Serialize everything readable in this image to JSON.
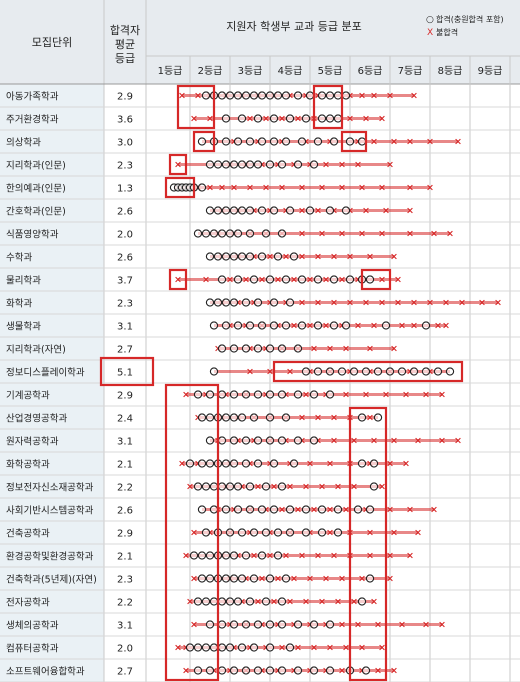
{
  "headers": {
    "unit": "모집단위",
    "avg": "합격자 평균 등급",
    "dist": "지원자 학생부 교과 등급 분포"
  },
  "legend": {
    "pass_symbol": "○",
    "pass_text": "합격(충원합격 포함)",
    "fail_symbol": "X",
    "fail_text": "불합격"
  },
  "colors": {
    "accent": "#d62828",
    "header_bg": "#e7ebef",
    "name_bg": "#eaf1f5",
    "grid": "#c9c9c9"
  },
  "chart_data": {
    "type": "scatter",
    "title": "지원자 학생부 교과 등급 분포",
    "xlim": [
      0.5,
      9.5
    ],
    "grades": [
      "1등급",
      "2등급",
      "3등급",
      "4등급",
      "5등급",
      "6등급",
      "7등급",
      "8등급",
      "9등급"
    ],
    "series": [
      {
        "name": "합격(충원합격 포함)",
        "marker": "circle"
      },
      {
        "name": "불합격",
        "marker": "x"
      }
    ],
    "rows": [
      {
        "name": "아동가족학과",
        "avg": "2.9",
        "pass": [
          1.9,
          2.1,
          2.3,
          2.5,
          2.7,
          2.9,
          3.1,
          3.3,
          3.5,
          3.7,
          3.9,
          4.2,
          4.5,
          4.8,
          5.0,
          5.2,
          5.4
        ],
        "fail": [
          1.3,
          1.7,
          2.0,
          2.4,
          2.8,
          3.2,
          3.6,
          4.0,
          4.4,
          4.7,
          5.5,
          5.8,
          6.1,
          6.5,
          7.1
        ]
      },
      {
        "name": "주거환경학과",
        "avg": "3.6",
        "pass": [
          2.4,
          2.8,
          3.2,
          3.6,
          4.0,
          4.4,
          4.8,
          5.0,
          5.2
        ],
        "fail": [
          1.6,
          2.0,
          3.0,
          3.4,
          3.8,
          4.2,
          4.6,
          5.5,
          5.9,
          6.3
        ]
      },
      {
        "name": "의상학과",
        "avg": "3.0",
        "pass": [
          1.8,
          2.1,
          2.4,
          2.7,
          3.0,
          3.3,
          3.6,
          3.9,
          4.3,
          4.7,
          5.1,
          5.5,
          5.8
        ],
        "fail": [
          2.6,
          3.2,
          3.8,
          4.4,
          5.0,
          5.7,
          6.1,
          6.6,
          7.0,
          7.5,
          8.2
        ]
      },
      {
        "name": "지리학과(인문)",
        "avg": "2.3",
        "pass": [
          2.0,
          2.2,
          2.4,
          2.6,
          2.8,
          3.0,
          3.2,
          3.5,
          3.8,
          4.2,
          4.6
        ],
        "fail": [
          1.2,
          2.5,
          2.9,
          3.3,
          3.7,
          4.1,
          4.5,
          4.9,
          5.3,
          5.7,
          6.5
        ]
      },
      {
        "name": "한의예과(인문)",
        "avg": "1.3",
        "pass": [
          1.1,
          1.2,
          1.3,
          1.4,
          1.5,
          1.6,
          1.8
        ],
        "fail": [
          1.7,
          2.0,
          2.3,
          2.6,
          3.0,
          3.4,
          3.8,
          4.3,
          4.8,
          5.3,
          5.8,
          6.3,
          7.0,
          7.5
        ]
      },
      {
        "name": "간호학과(인문)",
        "avg": "2.6",
        "pass": [
          2.0,
          2.2,
          2.4,
          2.6,
          2.8,
          3.0,
          3.3,
          3.6,
          4.0,
          4.5,
          5.0,
          5.4
        ],
        "fail": [
          2.3,
          2.7,
          3.1,
          3.5,
          3.9,
          4.3,
          4.7,
          5.1,
          5.5,
          5.9,
          6.4,
          7.0
        ]
      },
      {
        "name": "식품영양학과",
        "avg": "2.0",
        "pass": [
          1.7,
          1.9,
          2.1,
          2.3,
          2.5,
          2.7,
          3.0,
          3.4,
          3.8
        ],
        "fail": [
          2.2,
          2.6,
          3.0,
          3.4,
          3.8,
          4.3,
          4.8,
          5.3,
          5.8,
          6.3,
          7.0,
          7.6,
          8.0
        ]
      },
      {
        "name": "수학과",
        "avg": "2.6",
        "pass": [
          2.0,
          2.2,
          2.4,
          2.6,
          2.8,
          3.0,
          3.3,
          3.7,
          4.1
        ],
        "fail": [
          2.3,
          2.7,
          3.1,
          3.5,
          3.9,
          4.3,
          4.7,
          5.1,
          5.5,
          6.0,
          6.6
        ]
      },
      {
        "name": "물리학과",
        "avg": "3.7",
        "pass": [
          2.3,
          2.7,
          3.1,
          3.5,
          3.9,
          4.3,
          4.7,
          5.1,
          5.5,
          5.8,
          6.0
        ],
        "fail": [
          1.2,
          1.9,
          2.5,
          2.9,
          3.3,
          3.7,
          4.1,
          4.5,
          4.9,
          5.3,
          5.7,
          6.3,
          6.7
        ]
      },
      {
        "name": "화학과",
        "avg": "2.3",
        "pass": [
          2.0,
          2.2,
          2.4,
          2.6,
          2.9,
          3.2,
          3.6,
          4.0
        ],
        "fail": [
          2.3,
          2.7,
          3.1,
          3.5,
          3.9,
          4.3,
          4.7,
          5.1,
          5.5,
          5.9,
          6.3,
          6.7,
          7.1,
          7.5,
          7.9,
          8.3,
          8.8,
          9.2
        ]
      },
      {
        "name": "생물학과",
        "avg": "3.1",
        "pass": [
          2.1,
          2.4,
          2.7,
          3.0,
          3.3,
          3.6,
          3.9,
          4.3,
          4.7,
          5.1,
          5.4,
          6.4,
          7.4
        ],
        "fail": [
          2.5,
          2.9,
          3.3,
          3.7,
          4.1,
          4.5,
          4.9,
          5.3,
          5.7,
          6.1,
          6.8,
          7.1,
          7.7,
          7.9
        ]
      },
      {
        "name": "지리학과(자연)",
        "avg": "2.7",
        "pass": [
          2.3,
          2.6,
          2.9,
          3.2,
          3.5,
          3.8,
          4.2
        ],
        "fail": [
          2.2,
          3.0,
          3.4,
          3.8,
          4.2,
          4.6,
          5.0,
          5.4,
          6.0,
          6.6
        ]
      },
      {
        "name": "정보디스플레이학과",
        "avg": "5.1",
        "pass": [
          2.1,
          4.4,
          4.7,
          5.0,
          5.3,
          5.6,
          5.9,
          6.2,
          6.5,
          6.8,
          7.1,
          7.4,
          7.7,
          8.0
        ],
        "fail": [
          3.0,
          3.5,
          4.0,
          4.5,
          5.0,
          5.5,
          6.0,
          6.5,
          7.0,
          7.5
        ]
      },
      {
        "name": "기계공학과",
        "avg": "2.9",
        "pass": [
          1.7,
          2.0,
          2.3,
          2.6,
          2.9,
          3.2,
          3.5,
          3.8,
          4.2,
          4.6,
          5.0
        ],
        "fail": [
          1.4,
          1.9,
          2.4,
          2.9,
          3.4,
          3.9,
          4.4,
          4.9,
          5.4,
          5.9,
          6.4,
          6.9,
          7.4,
          7.8
        ]
      },
      {
        "name": "산업경영공학과",
        "avg": "2.4",
        "pass": [
          1.8,
          2.0,
          2.2,
          2.4,
          2.6,
          2.8,
          3.1,
          3.5,
          3.9,
          5.8,
          6.2
        ],
        "fail": [
          1.7,
          2.3,
          2.7,
          3.1,
          3.5,
          3.9,
          4.3,
          4.7,
          5.1,
          5.5,
          6.0
        ]
      },
      {
        "name": "원자력공학과",
        "avg": "3.1",
        "pass": [
          2.0,
          2.3,
          2.6,
          2.9,
          3.2,
          3.5,
          3.8,
          4.2,
          4.6
        ],
        "fail": [
          2.2,
          2.7,
          3.1,
          3.5,
          3.9,
          4.3,
          4.7,
          5.1,
          5.6,
          6.1,
          6.6,
          7.2,
          7.8,
          8.2
        ]
      },
      {
        "name": "화학공학과",
        "avg": "2.1",
        "pass": [
          1.5,
          1.8,
          2.0,
          2.2,
          2.4,
          2.6,
          2.9,
          3.2,
          3.6,
          4.1,
          5.8,
          6.1
        ],
        "fail": [
          1.3,
          1.7,
          2.5,
          3.0,
          3.5,
          4.0,
          4.5,
          5.0,
          5.5,
          6.0,
          6.5,
          6.9
        ]
      },
      {
        "name": "정보전자신소재공학과",
        "avg": "2.2",
        "pass": [
          1.7,
          1.9,
          2.1,
          2.3,
          2.5,
          2.7,
          3.0,
          3.4,
          3.8,
          6.1
        ],
        "fail": [
          1.5,
          2.4,
          2.8,
          3.2,
          3.6,
          4.0,
          4.4,
          4.8,
          5.2,
          5.6,
          6.3
        ]
      },
      {
        "name": "사회기반시스템공학과",
        "avg": "2.6",
        "pass": [
          1.8,
          2.1,
          2.4,
          2.7,
          3.0,
          3.3,
          3.6,
          4.0,
          4.4,
          4.8,
          5.2,
          5.7,
          6.0
        ],
        "fail": [
          2.2,
          2.6,
          3.0,
          3.4,
          3.8,
          4.2,
          4.6,
          5.0,
          5.4,
          5.9,
          6.5,
          7.0,
          7.6
        ]
      },
      {
        "name": "건축공학과",
        "avg": "2.9",
        "pass": [
          1.9,
          2.2,
          2.5,
          2.8,
          3.1,
          3.4,
          3.7,
          4.0,
          4.4,
          4.8,
          5.2
        ],
        "fail": [
          1.6,
          2.0,
          2.5,
          3.0,
          3.5,
          4.0,
          4.5,
          5.0,
          5.5,
          6.0,
          6.6,
          7.2
        ]
      },
      {
        "name": "환경공학및환경공학과",
        "avg": "2.1",
        "pass": [
          1.6,
          1.8,
          2.0,
          2.2,
          2.4,
          2.6,
          2.9,
          3.3,
          3.7
        ],
        "fail": [
          1.4,
          2.3,
          2.7,
          3.1,
          3.5,
          3.9,
          4.3,
          4.7,
          5.1,
          5.5,
          6.0,
          6.5,
          7.0
        ]
      },
      {
        "name": "건축학과(5년제)(자연)",
        "avg": "2.3",
        "pass": [
          1.8,
          2.0,
          2.2,
          2.4,
          2.6,
          2.8,
          3.1,
          3.5,
          3.9,
          6.0
        ],
        "fail": [
          1.6,
          2.5,
          2.9,
          3.3,
          3.7,
          4.1,
          4.5,
          4.9,
          5.3,
          5.8,
          6.5
        ]
      },
      {
        "name": "전자공학과",
        "avg": "2.2",
        "pass": [
          1.7,
          1.9,
          2.1,
          2.3,
          2.5,
          2.7,
          3.0,
          3.4,
          3.8,
          5.8
        ],
        "fail": [
          1.5,
          2.4,
          2.8,
          3.2,
          3.6,
          4.0,
          4.4,
          4.8,
          5.2,
          5.6,
          6.1
        ]
      },
      {
        "name": "생체의공학과",
        "avg": "3.1",
        "pass": [
          2.0,
          2.3,
          2.6,
          2.9,
          3.2,
          3.5,
          3.8,
          4.2,
          4.6,
          5.0
        ],
        "fail": [
          1.6,
          2.5,
          2.9,
          3.3,
          3.7,
          4.1,
          4.5,
          4.9,
          5.3,
          5.7,
          6.2,
          6.8,
          7.4,
          7.8
        ]
      },
      {
        "name": "컴퓨터공학과",
        "avg": "2.0",
        "pass": [
          1.5,
          1.7,
          1.9,
          2.1,
          2.3,
          2.5,
          2.8,
          3.1,
          3.5,
          4.0
        ],
        "fail": [
          1.2,
          1.4,
          2.2,
          2.6,
          3.0,
          3.4,
          3.8,
          4.2,
          4.6,
          5.0,
          5.4,
          5.8,
          6.3
        ]
      },
      {
        "name": "소프트웨어융합학과",
        "avg": "2.7",
        "pass": [
          1.7,
          2.0,
          2.3,
          2.6,
          2.9,
          3.2,
          3.5,
          3.8,
          4.2,
          4.6,
          5.0,
          5.5,
          5.9
        ],
        "fail": [
          1.4,
          2.1,
          2.5,
          2.9,
          3.3,
          3.7,
          4.1,
          4.5,
          4.9,
          5.3,
          5.8,
          6.2,
          6.6
        ]
      }
    ],
    "highlights": [
      {
        "rows": [
          0,
          1
        ],
        "x": [
          1.2,
          2.1
        ]
      },
      {
        "rows": [
          0,
          1
        ],
        "x": [
          4.6,
          5.3
        ]
      },
      {
        "rows": [
          2,
          2
        ],
        "x": [
          1.6,
          2.1
        ]
      },
      {
        "rows": [
          2,
          2
        ],
        "x": [
          5.3,
          5.9
        ]
      },
      {
        "rows": [
          3,
          3
        ],
        "x": [
          1.0,
          1.4
        ]
      },
      {
        "rows": [
          4,
          4
        ],
        "x": [
          0.9,
          1.6
        ]
      },
      {
        "rows": [
          8,
          8
        ],
        "x": [
          1.0,
          1.4
        ]
      },
      {
        "rows": [
          8,
          8
        ],
        "x": [
          5.8,
          6.5
        ]
      },
      {
        "rows": [
          12,
          12
        ],
        "x": [
          3.6,
          8.3
        ]
      },
      {
        "rows": [
          13,
          25
        ],
        "x": [
          0.9,
          2.2
        ]
      },
      {
        "rows": [
          14,
          25
        ],
        "x": [
          5.5,
          6.4
        ]
      }
    ],
    "avg_highlights": [
      12
    ]
  }
}
